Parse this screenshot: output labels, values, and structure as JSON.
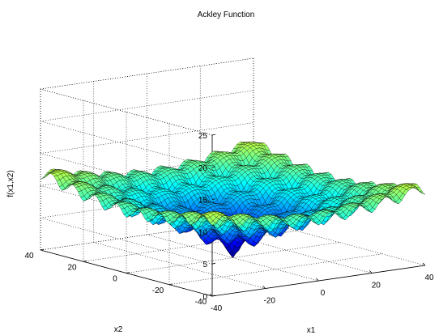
{
  "chart_data": {
    "type": "surface",
    "title": "Ackley Function",
    "xlabel": "x1",
    "ylabel": "x2",
    "zlabel": "f(x1,x2)",
    "xlim": [
      -40,
      40
    ],
    "ylim": [
      -40,
      40
    ],
    "zlim": [
      0,
      25
    ],
    "xticks": [
      "-40",
      "-20",
      "0",
      "20",
      "40"
    ],
    "yticks": [
      "-40",
      "-20",
      "0",
      "20",
      "40"
    ],
    "zticks": [
      "0",
      "5",
      "10",
      "15",
      "20",
      "25"
    ],
    "grid": true,
    "colormap": "jet",
    "function": "Ackley",
    "global_minimum": {
      "x1": 0,
      "x2": 0,
      "f": 0
    },
    "max_value": 22.3
  }
}
